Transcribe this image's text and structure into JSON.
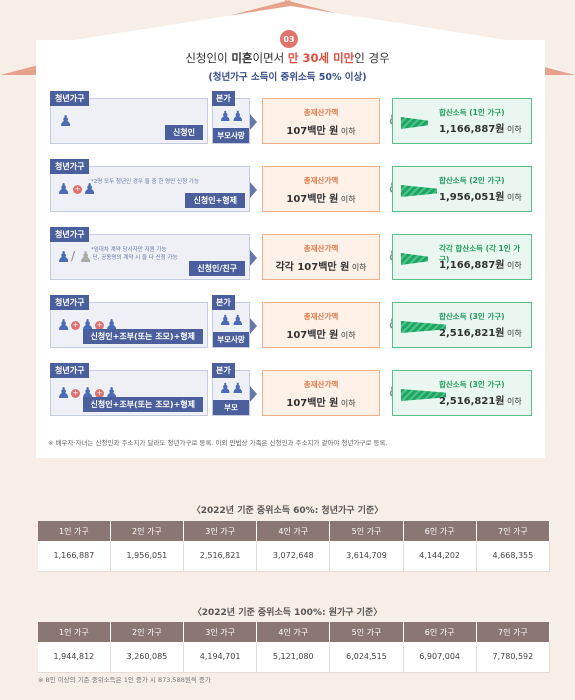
{
  "header": {
    "number": "03",
    "title_part1": "신청인이 ",
    "title_hl1": "미혼",
    "title_part2": "이면서 ",
    "title_hl2": "만 30세 미만",
    "title_part3": "인 경우",
    "subtitle": "(청년가구 소득이 중위소득 50% 이상)"
  },
  "rows": [
    {
      "tag": "청년가구",
      "bottom": "신청인",
      "note": "",
      "right_tag": "본가",
      "right_bottom": "부모사망",
      "asset_label": "총재산가액",
      "asset_value": "107백만 원",
      "asset_suffix": " 이하",
      "income_label": "합산소득 (1인 가구)",
      "income_value": "1,166,887원",
      "income_suffix": " 이하",
      "bar": 0.45
    },
    {
      "tag": "청년가구",
      "bottom": "신청인+형제",
      "note": "*2명 모두 청년인 경우 둘 중 한 명만 신청 가능",
      "right_tag": "",
      "right_bottom": "",
      "asset_label": "총재산가액",
      "asset_value": "107백만 원",
      "asset_suffix": " 이하",
      "income_label": "합산소득 (2인 가구)",
      "income_value": "1,956,051원",
      "income_suffix": " 이하",
      "bar": 0.6
    },
    {
      "tag": "청년가구",
      "bottom": "신청인/친구",
      "note": "*임대차 계약 당사자만 지원 가능\n 단, 공동명의 계약 시 둘 다 신청 가능",
      "right_tag": "",
      "right_bottom": "",
      "asset_label": "총재산가액",
      "asset_value": "각각 107백만 원",
      "asset_suffix": " 이하",
      "income_label": "각각 합산소득 (각 1인 가구)",
      "income_value": "1,166,887원",
      "income_suffix": " 이하",
      "bar": 0.45
    },
    {
      "tag": "청년가구",
      "bottom": "신청인+조부(또는 조모)+형제",
      "note": "",
      "right_tag": "본가",
      "right_bottom": "부모사망",
      "asset_label": "총재산가액",
      "asset_value": "107백만 원",
      "asset_suffix": " 이하",
      "income_label": "합산소득 (3인 가구)",
      "income_value": "2,516,821원",
      "income_suffix": " 이하",
      "bar": 0.75
    },
    {
      "tag": "청년가구",
      "bottom": "신청인+조부(또는 조모)+형제",
      "note": "",
      "right_tag": "본가",
      "right_bottom": "부모",
      "asset_label": "총재산가액",
      "asset_value": "107백만 원",
      "asset_suffix": " 이하",
      "income_label": "합산소득 (3인 가구)",
      "income_value": "2,516,821원",
      "income_suffix": " 이하",
      "bar": 0.75
    }
  ],
  "footnote": "※ 배우자·자녀는 신청인과 주소지가 달라도 청년가구로 등록. 이외 민법상 가족은 신청인과 주소지가 같아야 청년가구로 등록.",
  "amp": "&",
  "table1": {
    "title": "〈2022년 기준 중위소득 60%: 청년가구 기준〉",
    "headers": [
      "1인 가구",
      "2인 가구",
      "3인 가구",
      "4인 가구",
      "5인 가구",
      "6인 가구",
      "7인 가구"
    ],
    "values": [
      "1,166,887",
      "1,956,051",
      "2,516,821",
      "3,072,648",
      "3,614,709",
      "4,144,202",
      "4,668,355"
    ]
  },
  "table2": {
    "title": "〈2022년 기준 중위소득 100%: 원가구 기준〉",
    "headers": [
      "1인 가구",
      "2인 가구",
      "3인 가구",
      "4인 가구",
      "5인 가구",
      "6인 가구",
      "7인 가구"
    ],
    "values": [
      "1,944,812",
      "3,260,085",
      "4,194,701",
      "5,121,080",
      "6,024,515",
      "6,907,004",
      "7,780,592"
    ]
  },
  "bottom_note": "※ 8인 이상의 기준 중위소득은 1인 증가 시 873,588원씩 증가"
}
